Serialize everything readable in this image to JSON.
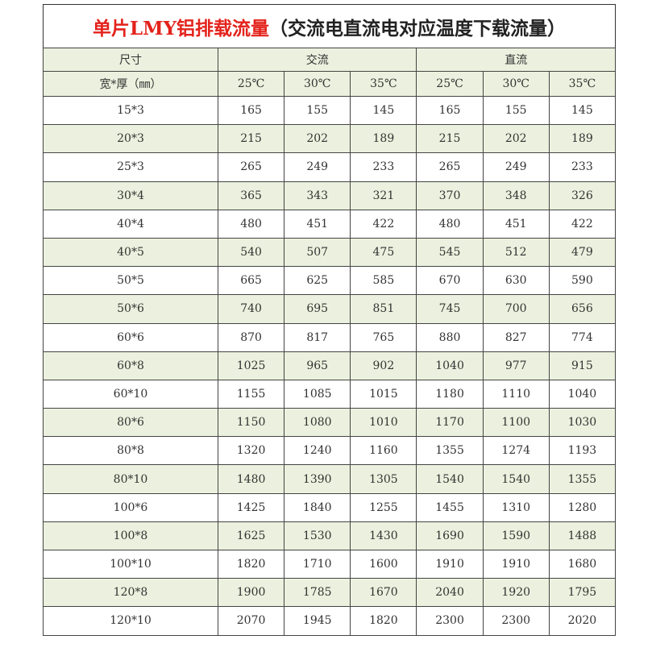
{
  "title": {
    "red": "单片LMY铝排载流量",
    "black": "（交流电直流电对应温度下载流量）"
  },
  "header": {
    "size": "尺寸",
    "dims": "宽*厚（㎜）",
    "ac": "交流",
    "dc": "直流",
    "temps": [
      "25℃",
      "30℃",
      "35℃",
      "25℃",
      "30℃",
      "35℃"
    ]
  },
  "rows": [
    [
      "15*3",
      "165",
      "155",
      "145",
      "165",
      "155",
      "145"
    ],
    [
      "20*3",
      "215",
      "202",
      "189",
      "215",
      "202",
      "189"
    ],
    [
      "25*3",
      "265",
      "249",
      "233",
      "265",
      "249",
      "233"
    ],
    [
      "30*4",
      "365",
      "343",
      "321",
      "370",
      "348",
      "326"
    ],
    [
      "40*4",
      "480",
      "451",
      "422",
      "480",
      "451",
      "422"
    ],
    [
      "40*5",
      "540",
      "507",
      "475",
      "545",
      "512",
      "479"
    ],
    [
      "50*5",
      "665",
      "625",
      "585",
      "670",
      "630",
      "590"
    ],
    [
      "50*6",
      "740",
      "695",
      "851",
      "745",
      "700",
      "656"
    ],
    [
      "60*6",
      "870",
      "817",
      "765",
      "880",
      "827",
      "774"
    ],
    [
      "60*8",
      "1025",
      "965",
      "902",
      "1040",
      "977",
      "915"
    ],
    [
      "60*10",
      "1155",
      "1085",
      "1015",
      "1180",
      "1110",
      "1040"
    ],
    [
      "80*6",
      "1150",
      "1080",
      "1010",
      "1170",
      "1100",
      "1030"
    ],
    [
      "80*8",
      "1320",
      "1240",
      "1160",
      "1355",
      "1274",
      "1193"
    ],
    [
      "80*10",
      "1480",
      "1390",
      "1305",
      "1540",
      "1540",
      "1355"
    ],
    [
      "100*6",
      "1425",
      "1840",
      "1255",
      "1455",
      "1310",
      "1280"
    ],
    [
      "100*8",
      "1625",
      "1530",
      "1430",
      "1690",
      "1590",
      "1488"
    ],
    [
      "100*10",
      "1820",
      "1710",
      "1600",
      "1910",
      "1910",
      "1680"
    ],
    [
      "120*8",
      "1900",
      "1785",
      "1670",
      "2040",
      "1920",
      "1795"
    ],
    [
      "120*10",
      "2070",
      "1945",
      "1820",
      "2300",
      "2300",
      "2020"
    ]
  ],
  "colors": {
    "title_red": "#e3231c",
    "stripe": "#ebf1de"
  }
}
